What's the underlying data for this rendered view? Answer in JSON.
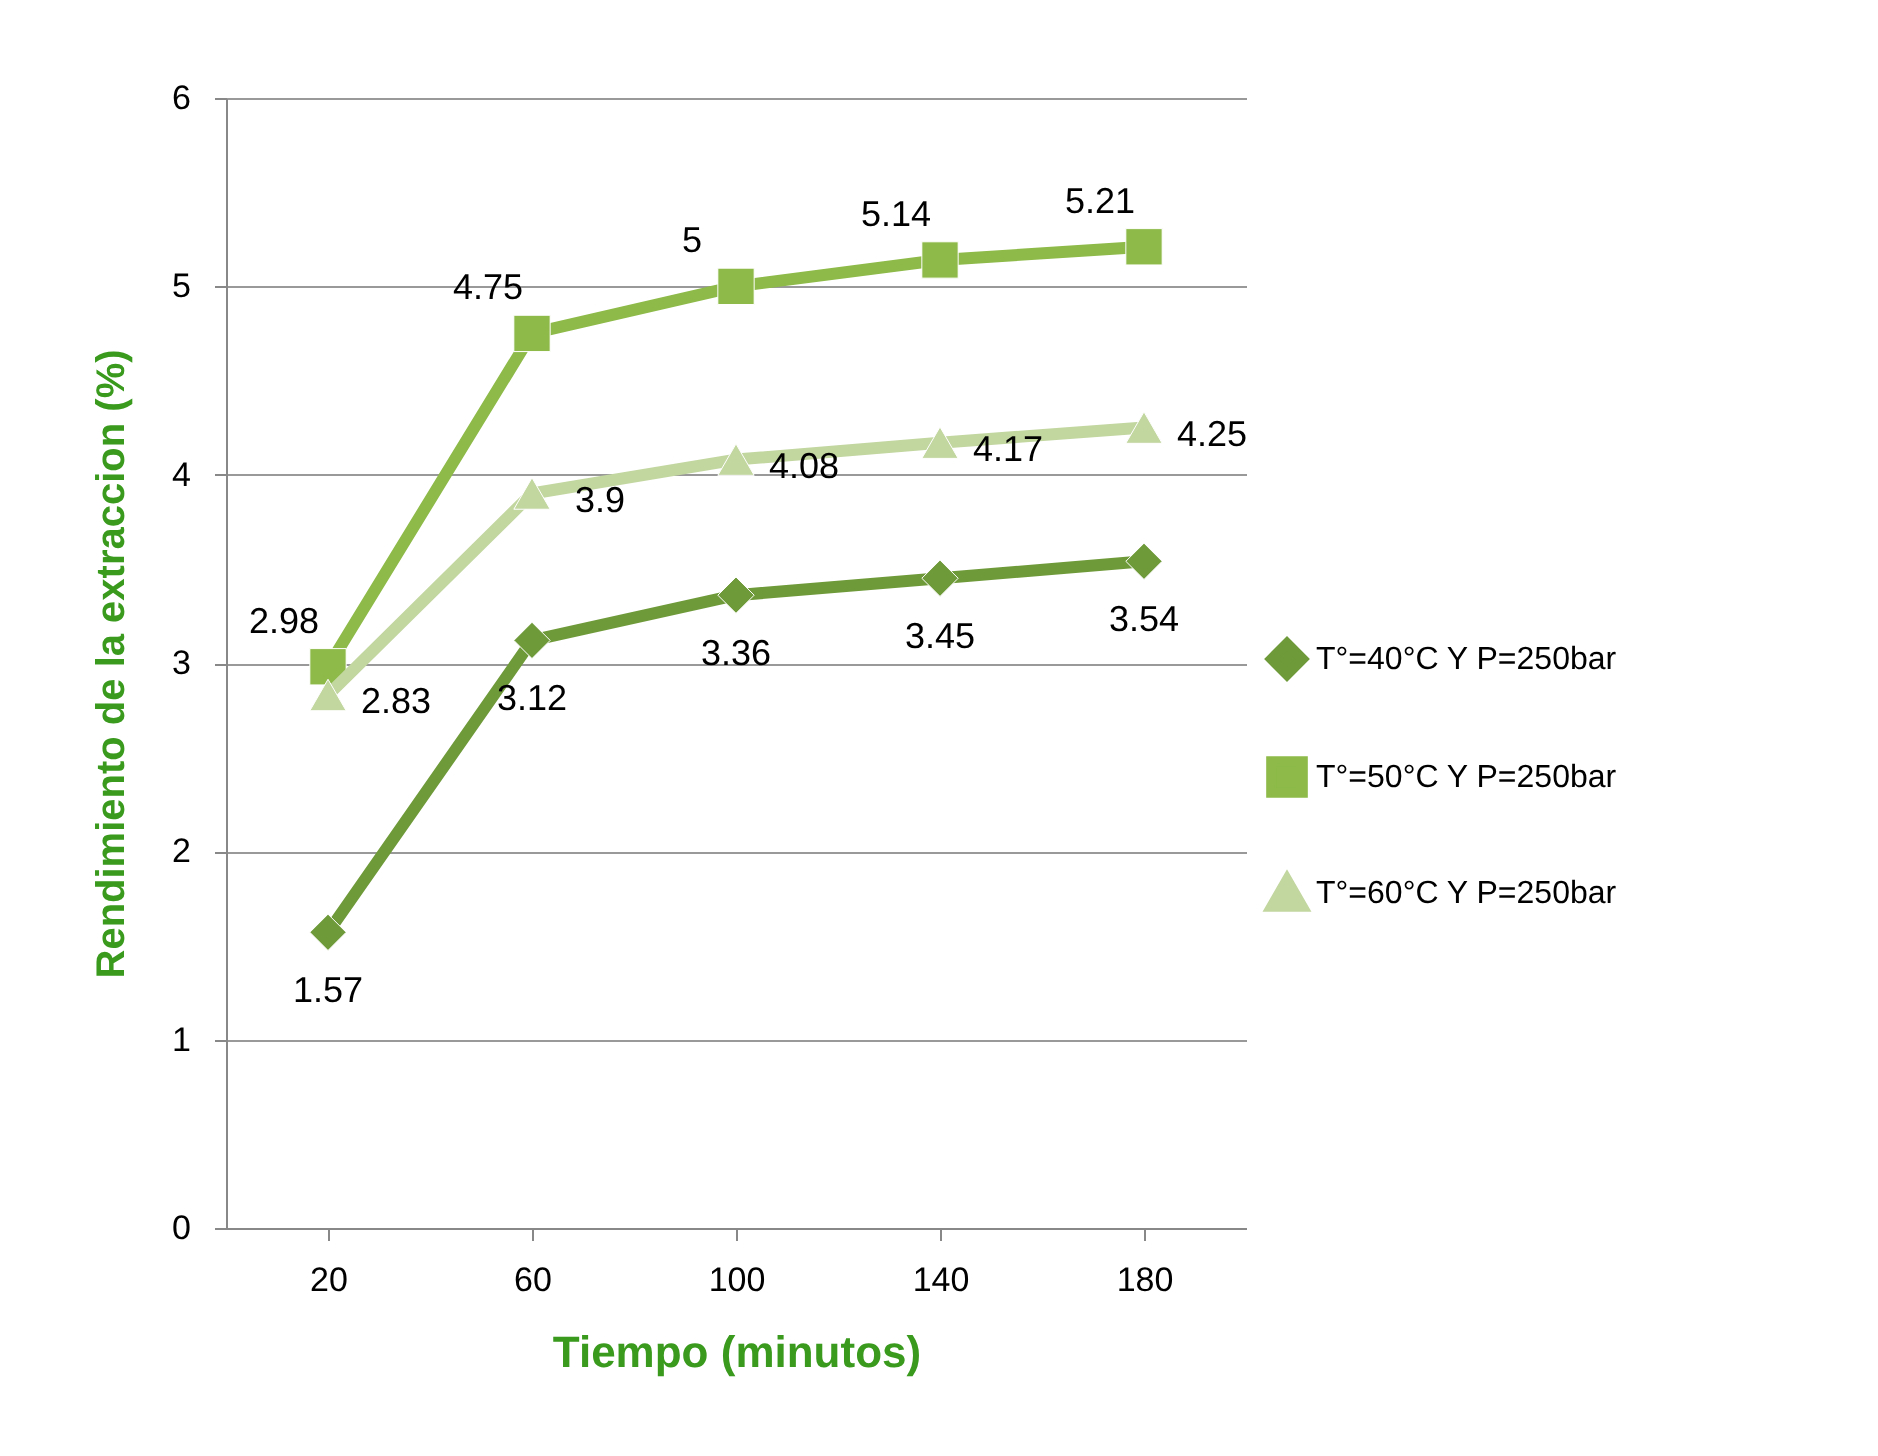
{
  "chart_data": {
    "type": "line",
    "xlabel": "Tiempo (minutos)",
    "ylabel": "Rendimiento de la extraccion (%)",
    "categories": [
      "20",
      "60",
      "100",
      "140",
      "180"
    ],
    "series": [
      {
        "name": "T°=40°C Y P=250bar",
        "color": "#6f9a3a",
        "marker": "diamond",
        "values": [
          1.57,
          3.12,
          3.36,
          3.45,
          3.54
        ]
      },
      {
        "name": "T°=50°C Y P=250bar",
        "color": "#8dba48",
        "marker": "square",
        "values": [
          2.98,
          4.75,
          5,
          5.14,
          5.21
        ]
      },
      {
        "name": "T°=60°C Y P=250bar",
        "color": "#c2d6a0",
        "marker": "triangle",
        "values": [
          2.83,
          3.9,
          4.08,
          4.17,
          4.25
        ]
      }
    ],
    "ylim": [
      0,
      6
    ],
    "yticks": [
      0,
      1,
      2,
      3,
      4,
      5,
      6
    ],
    "grid": "y",
    "legend": "right",
    "data_labels": true,
    "line_style": "solid"
  }
}
